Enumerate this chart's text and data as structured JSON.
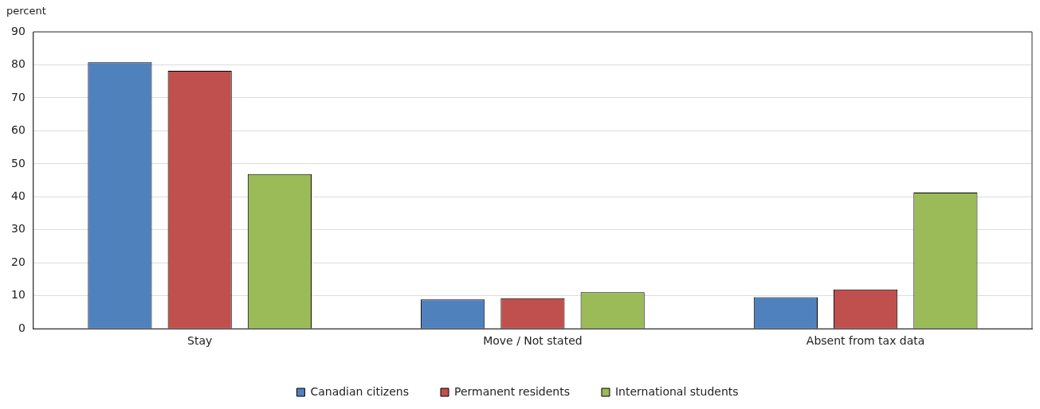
{
  "chart_data": {
    "type": "bar",
    "ylabel": "percent",
    "categories": [
      "Stay",
      "Move / Not stated",
      "Absent from tax data"
    ],
    "series": [
      {
        "name": "Canadian citizens",
        "color": "#4f81bd",
        "values": [
          80.8,
          8.9,
          9.6
        ]
      },
      {
        "name": "Permanent residents",
        "color": "#c0504d",
        "values": [
          78.2,
          9.3,
          11.9
        ]
      },
      {
        "name": "International students",
        "color": "#9bbb59",
        "values": [
          46.9,
          11.1,
          41.3
        ]
      }
    ],
    "ylim": [
      0,
      90
    ],
    "yticks": [
      0,
      10,
      20,
      30,
      40,
      50,
      60,
      70,
      80,
      90
    ],
    "grid": "y",
    "legend": "bottom"
  }
}
